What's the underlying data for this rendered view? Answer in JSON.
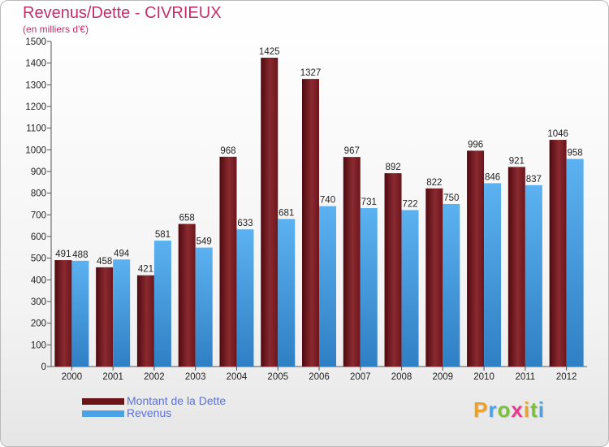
{
  "header": {
    "title": "Revenus/Dette - CIVRIEUX",
    "subtitle": "(en milliers d'€)"
  },
  "chart_data": {
    "type": "bar",
    "title": "Revenus/Dette - CIVRIEUX",
    "ylabel": "(en milliers d'€)",
    "xlabel": "",
    "categories": [
      "2000",
      "2001",
      "2002",
      "2003",
      "2004",
      "2005",
      "2006",
      "2007",
      "2008",
      "2009",
      "2010",
      "2011",
      "2012"
    ],
    "series": [
      {
        "name": "Montant de la Dette",
        "color": "#7a1c22",
        "values": [
          491,
          458,
          421,
          658,
          968,
          1425,
          1327,
          967,
          892,
          822,
          996,
          921,
          1046
        ]
      },
      {
        "name": "Revenus",
        "color": "#4aa3e6",
        "values": [
          488,
          494,
          581,
          549,
          633,
          681,
          740,
          731,
          722,
          750,
          846,
          837,
          958
        ]
      }
    ],
    "ylim": [
      0,
      1500
    ],
    "yticks": [
      0,
      100,
      200,
      300,
      400,
      500,
      600,
      700,
      800,
      900,
      1000,
      1100,
      1200,
      1300,
      1400,
      1500
    ],
    "grid": false,
    "legend_position": "bottom-left"
  },
  "legend": {
    "items": [
      {
        "label": "Montant de la Dette",
        "color": "#7a1c22"
      },
      {
        "label": "Revenus",
        "color": "#4aa3e6"
      }
    ]
  },
  "logo": {
    "letters": [
      "P",
      "r",
      "o",
      "x",
      "i",
      "t",
      "i"
    ],
    "colors": [
      "#f0a020",
      "#4aa3e6",
      "#7bbf3a",
      "#e83a8c",
      "#f0a020",
      "#7bbf3a",
      "#4aa3e6"
    ]
  }
}
